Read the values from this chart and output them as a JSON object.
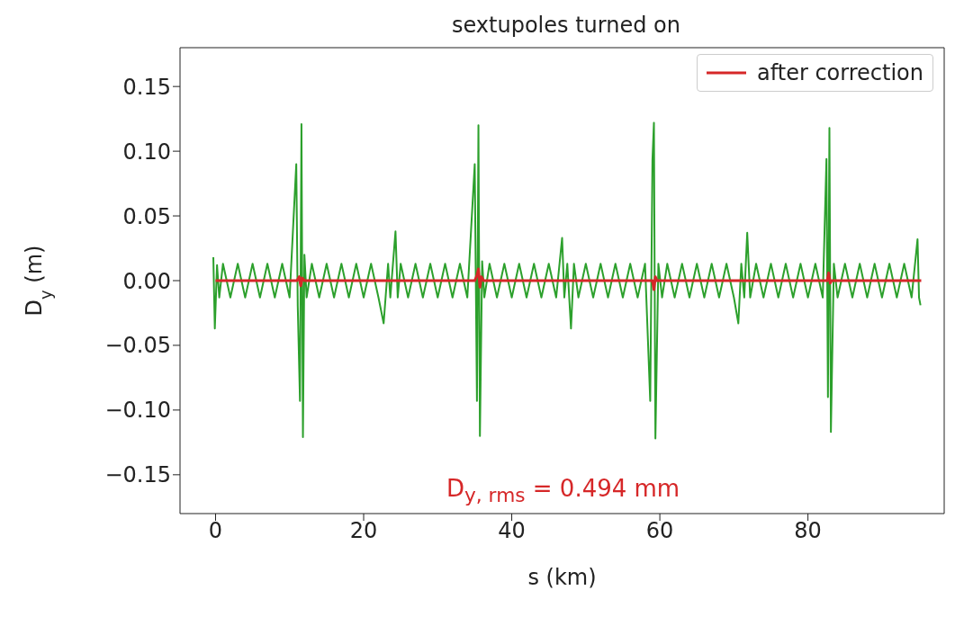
{
  "chart_data": {
    "type": "line",
    "title": "sextupoles turned on",
    "xlabel": "s (km)",
    "ylabel": "D$_{y}$ (m)",
    "annotations": [
      "D$_{y, rms}$ = 0.494 mm"
    ],
    "xlim": [
      -4.8,
      98.4
    ],
    "xticks": [
      0,
      20,
      40,
      60,
      80
    ],
    "ylim": [
      -0.18,
      0.18
    ],
    "yticks": [
      {
        "value": -0.15,
        "label": "−0.15"
      },
      {
        "value": -0.1,
        "label": "−0.10"
      },
      {
        "value": -0.05,
        "label": "−0.05"
      },
      {
        "value": 0,
        "label": "0.00"
      },
      {
        "value": 0.05,
        "label": "0.05"
      },
      {
        "value": 0.1,
        "label": "0.10"
      },
      {
        "value": 0.15,
        "label": "0.15"
      }
    ],
    "legend": "top right",
    "marker": "none",
    "line_style": "solid",
    "series": [
      {
        "color": "#2ca02c",
        "x": [
          -0.3,
          -0.1,
          0.2,
          0.5,
          1,
          2,
          3,
          4,
          5,
          6,
          7,
          8,
          9,
          10,
          10.9,
          11.1,
          11.4,
          11.6,
          11.8,
          12.0,
          12.3,
          13,
          14,
          15,
          16,
          17,
          18,
          19,
          20,
          21,
          22,
          22.7,
          23.3,
          23.6,
          24.3,
          24.6,
          25,
          26,
          27,
          28,
          29,
          30,
          31,
          32,
          33,
          34,
          35.0,
          35.3,
          35.5,
          35.7,
          36.0,
          36.3,
          37,
          38,
          39,
          40,
          41,
          42,
          43,
          44,
          45,
          46,
          46.8,
          47.1,
          47.5,
          48.0,
          48.4,
          49,
          50,
          51,
          52,
          53,
          54,
          55,
          56,
          57,
          58,
          58.7,
          59.0,
          59.2,
          59.4,
          59.8,
          60.3,
          61,
          62,
          63,
          64,
          65,
          66,
          67,
          68,
          69,
          70,
          70.6,
          71.0,
          71.4,
          71.8,
          72.2,
          73,
          74,
          75,
          76,
          77,
          78,
          79,
          80,
          81,
          82,
          82.5,
          82.7,
          82.9,
          83.1,
          83.5,
          84,
          85,
          86,
          87,
          88,
          89,
          90,
          91,
          92,
          93,
          94,
          94.8,
          95.0,
          95.2
        ],
        "values": [
          0.018,
          -0.037,
          0.012,
          -0.013,
          0.013,
          -0.013,
          0.013,
          -0.013,
          0.013,
          -0.013,
          0.013,
          -0.013,
          0.013,
          -0.013,
          0.09,
          -0.02,
          -0.093,
          0.121,
          -0.121,
          0.02,
          -0.013,
          0.013,
          -0.013,
          0.013,
          -0.013,
          0.013,
          -0.013,
          0.013,
          -0.013,
          0.013,
          -0.013,
          -0.033,
          0.013,
          -0.013,
          0.038,
          -0.013,
          0.013,
          -0.013,
          0.013,
          -0.013,
          0.013,
          -0.013,
          0.013,
          -0.013,
          0.013,
          -0.013,
          0.09,
          -0.093,
          0.12,
          -0.12,
          0.015,
          -0.013,
          0.013,
          -0.013,
          0.013,
          -0.013,
          0.013,
          -0.013,
          0.013,
          -0.013,
          0.013,
          -0.013,
          0.033,
          -0.013,
          0.013,
          -0.037,
          0.013,
          -0.013,
          0.013,
          -0.013,
          0.013,
          -0.013,
          0.013,
          -0.013,
          0.013,
          -0.013,
          0.013,
          -0.093,
          0.093,
          0.122,
          -0.122,
          0.013,
          -0.013,
          0.013,
          -0.013,
          0.013,
          -0.013,
          0.013,
          -0.013,
          0.013,
          -0.013,
          0.013,
          -0.013,
          -0.033,
          0.013,
          -0.013,
          0.037,
          -0.013,
          0.013,
          -0.013,
          0.013,
          -0.013,
          0.013,
          -0.013,
          0.013,
          -0.013,
          0.013,
          -0.013,
          0.094,
          -0.09,
          0.118,
          -0.117,
          0.013,
          -0.013,
          0.013,
          -0.013,
          0.013,
          -0.013,
          0.013,
          -0.013,
          0.013,
          -0.013,
          0.013,
          -0.013,
          0.032,
          -0.013,
          -0.019
        ]
      },
      {
        "name": "after correction",
        "color": "#d62728",
        "x": [
          0,
          11.0,
          11.3,
          11.5,
          11.7,
          12.0,
          35.0,
          35.3,
          35.5,
          35.7,
          35.9,
          36.2,
          59.0,
          59.2,
          59.4,
          59.6,
          82.6,
          82.8,
          83.0,
          83.2,
          95.3
        ],
        "values": [
          0,
          0,
          0.003,
          -0.004,
          0.002,
          0,
          0,
          0.004,
          0.009,
          -0.005,
          0.003,
          0,
          0,
          -0.007,
          0.003,
          0,
          0,
          0.006,
          -0.002,
          0,
          0
        ]
      }
    ]
  }
}
